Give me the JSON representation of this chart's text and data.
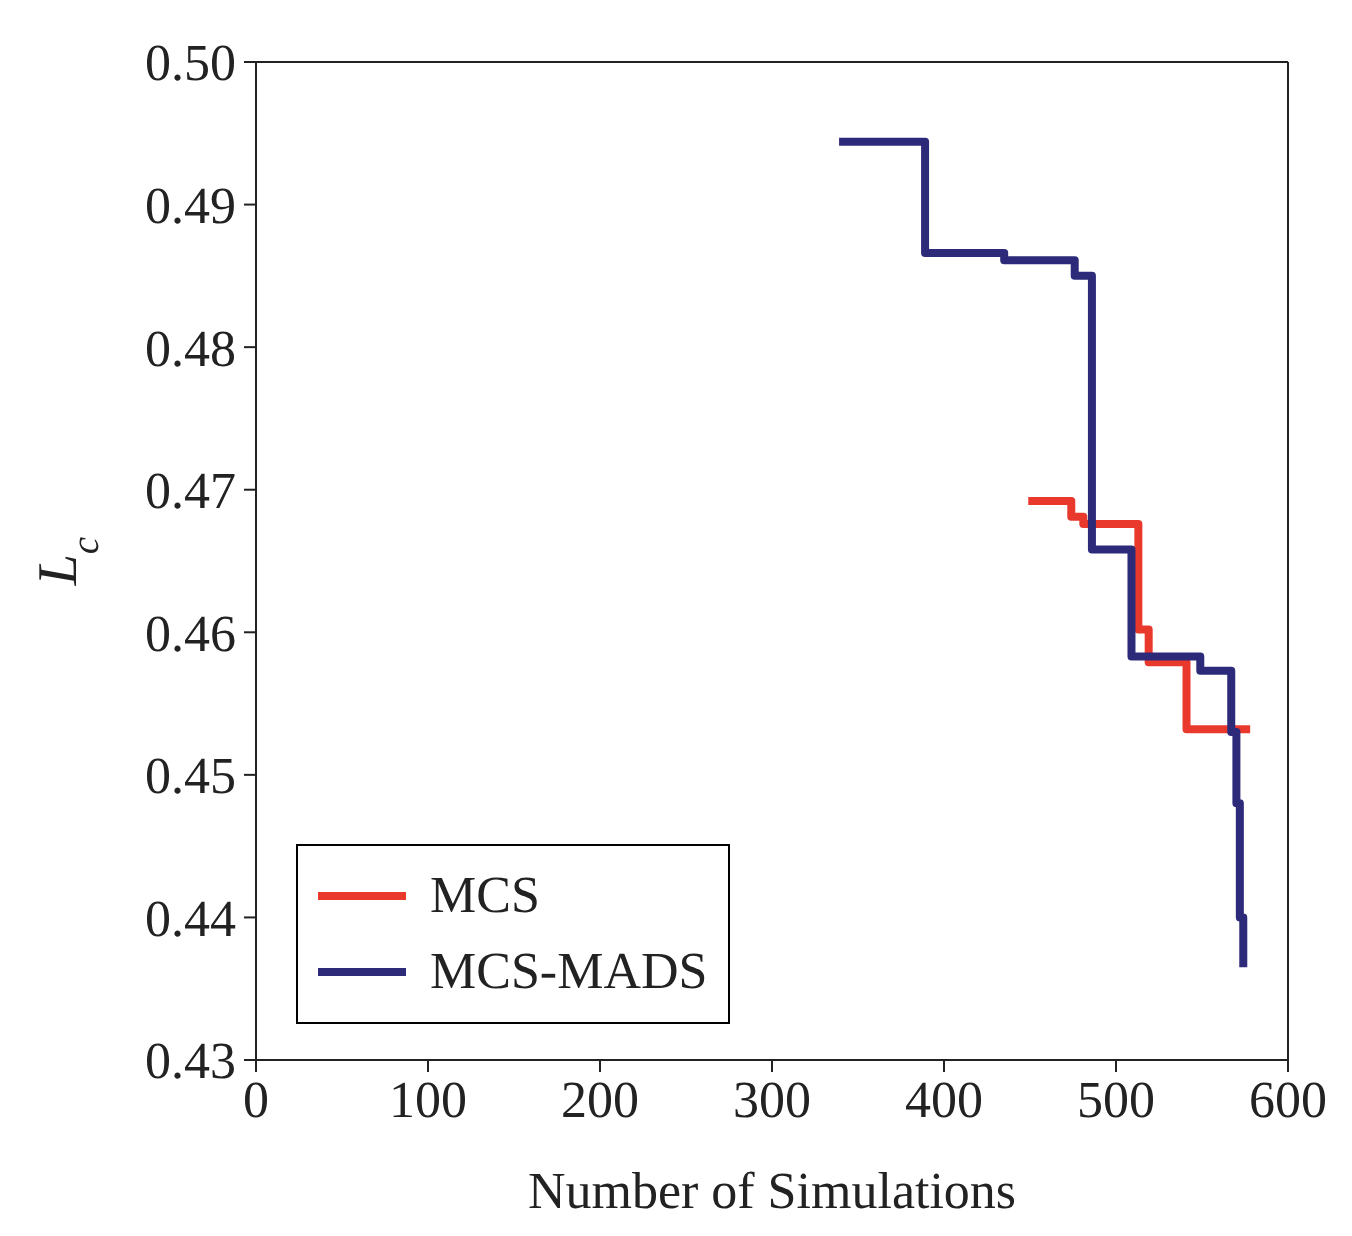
{
  "chart_data": {
    "type": "step",
    "xlabel": "Number of Simulations",
    "ylabel": "L$_{c}$",
    "xlim": [
      0,
      600
    ],
    "xticks": [
      0,
      100,
      200,
      300,
      400,
      500,
      600
    ],
    "ylim": [
      0.43,
      0.5
    ],
    "yticks": [
      {
        "value": 0.43,
        "label": "0.43"
      },
      {
        "value": 0.44,
        "label": "0.44"
      },
      {
        "value": 0.45,
        "label": "0.45"
      },
      {
        "value": 0.46,
        "label": "0.46"
      },
      {
        "value": 0.47,
        "label": "0.47"
      },
      {
        "value": 0.48,
        "label": "0.48"
      },
      {
        "value": 0.49,
        "label": "0.49"
      },
      {
        "value": 0.5,
        "label": "0.50"
      }
    ],
    "legend": "bottom left",
    "marker": "none",
    "line_style": "solid",
    "series": [
      {
        "name": "MCS",
        "color": "#e8392c",
        "x": [
          449,
          474,
          481,
          513,
          519,
          541,
          578
        ],
        "values": [
          0.4692,
          0.4681,
          0.4676,
          0.4602,
          0.4579,
          0.4532,
          0.4532
        ]
      },
      {
        "name": "MCS-MADS",
        "color": "#2e2a7a",
        "x": [
          339,
          389,
          435,
          476,
          486,
          509,
          549,
          567,
          570,
          572,
          574
        ],
        "values": [
          0.4944,
          0.4866,
          0.4861,
          0.485,
          0.4658,
          0.4583,
          0.4573,
          0.453,
          0.448,
          0.44,
          0.4365
        ]
      }
    ]
  }
}
